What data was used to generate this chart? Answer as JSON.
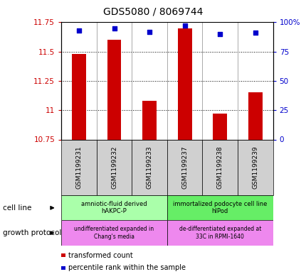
{
  "title": "GDS5080 / 8069744",
  "samples": [
    "GSM1199231",
    "GSM1199232",
    "GSM1199233",
    "GSM1199237",
    "GSM1199238",
    "GSM1199239"
  ],
  "bar_values": [
    11.48,
    11.6,
    11.08,
    11.7,
    10.97,
    11.15
  ],
  "bar_bottom": 10.75,
  "dot_values": [
    93,
    95,
    92,
    97,
    90,
    91
  ],
  "ylim": [
    10.75,
    11.75
  ],
  "y2lim": [
    0,
    100
  ],
  "yticks": [
    10.75,
    11.0,
    11.25,
    11.5,
    11.75
  ],
  "ytick_labels": [
    "10.75",
    "11",
    "11.25",
    "11.5",
    "11.75"
  ],
  "y2ticks": [
    0,
    25,
    50,
    75,
    100
  ],
  "y2tick_labels": [
    "0",
    "25",
    "50",
    "75",
    "100%"
  ],
  "bar_color": "#cc0000",
  "dot_color": "#0000cc",
  "left_tick_color": "#cc0000",
  "right_tick_color": "#0000cc",
  "cell_line_groups": [
    {
      "label": "amniotic-fluid derived\nhAKPC-P",
      "start": 0,
      "end": 3,
      "color": "#aaffaa"
    },
    {
      "label": "immortalized podocyte cell line\nhIPod",
      "start": 3,
      "end": 6,
      "color": "#66ee66"
    }
  ],
  "growth_protocol_groups": [
    {
      "label": "undifferentiated expanded in\nChang's media",
      "start": 0,
      "end": 3,
      "color": "#ee88ee"
    },
    {
      "label": "de-differentiated expanded at\n33C in RPMI-1640",
      "start": 3,
      "end": 6,
      "color": "#ee88ee"
    }
  ],
  "cell_line_label": "cell line",
  "growth_protocol_label": "growth protocol",
  "legend_items": [
    {
      "color": "#cc0000",
      "label": "transformed count"
    },
    {
      "color": "#0000cc",
      "label": "percentile rank within the sample"
    }
  ],
  "sample_col_color": "#d0d0d0",
  "bar_width": 0.4
}
